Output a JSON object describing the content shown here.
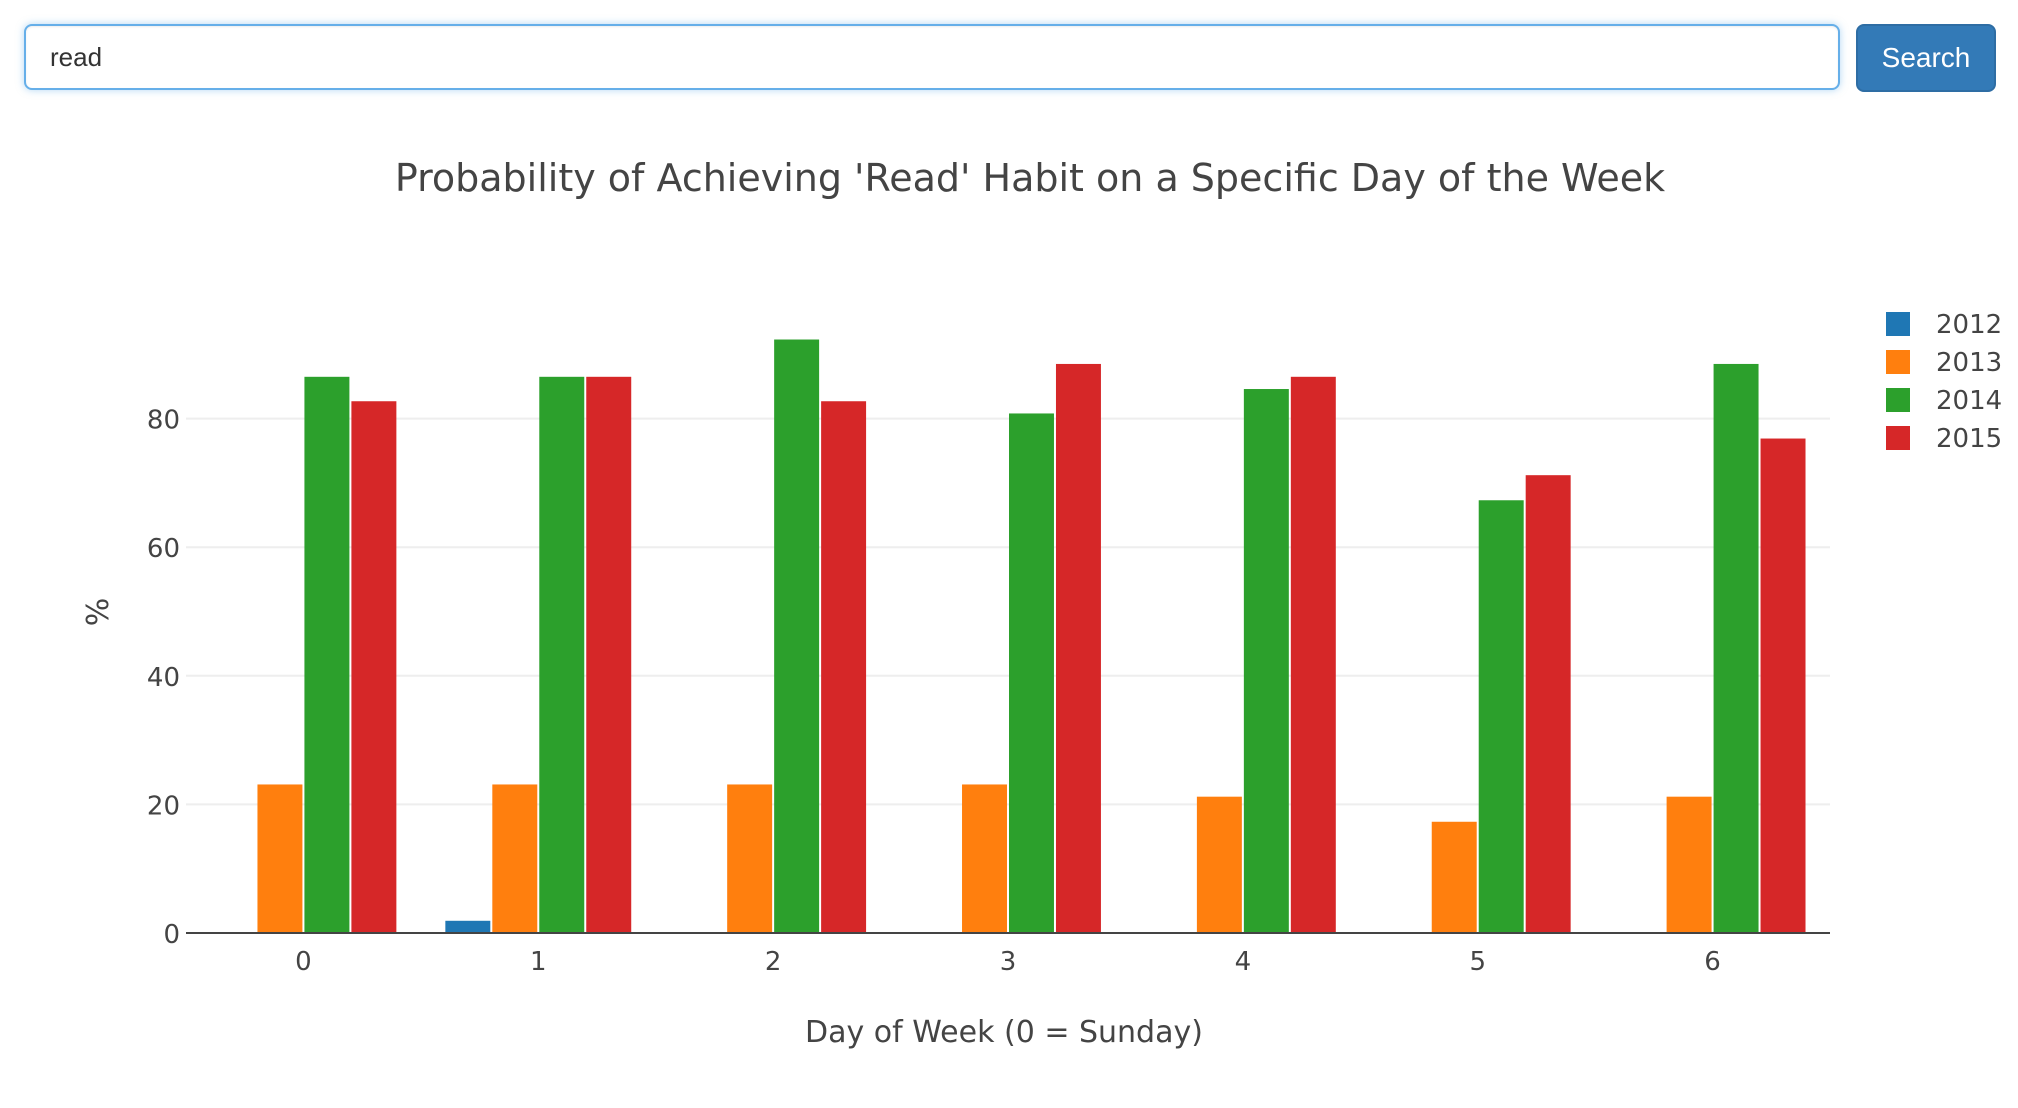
{
  "search": {
    "value": "read",
    "button_label": "Search"
  },
  "chart_data": {
    "type": "bar",
    "title": "Probability of Achieving 'Read' Habit on a Specific Day of the Week",
    "xlabel": "Day of Week (0 = Sunday)",
    "ylabel": "%",
    "categories": [
      "0",
      "1",
      "2",
      "3",
      "4",
      "5",
      "6"
    ],
    "ylim": [
      0,
      100
    ],
    "yticks": [
      0,
      20,
      40,
      60,
      80
    ],
    "grid": true,
    "legend": "top-right",
    "series": [
      {
        "name": "2012",
        "color": "#1f77b4",
        "values": [
          0,
          1.9,
          0,
          0,
          0,
          0,
          0
        ]
      },
      {
        "name": "2013",
        "color": "#ff7f0e",
        "values": [
          23.1,
          23.1,
          23.1,
          23.1,
          21.2,
          17.3,
          21.2
        ]
      },
      {
        "name": "2014",
        "color": "#2ca02c",
        "values": [
          86.5,
          86.5,
          92.3,
          80.8,
          84.6,
          67.3,
          88.5
        ]
      },
      {
        "name": "2015",
        "color": "#d62728",
        "values": [
          82.7,
          86.5,
          82.7,
          88.5,
          86.5,
          71.2,
          76.9
        ]
      }
    ]
  }
}
